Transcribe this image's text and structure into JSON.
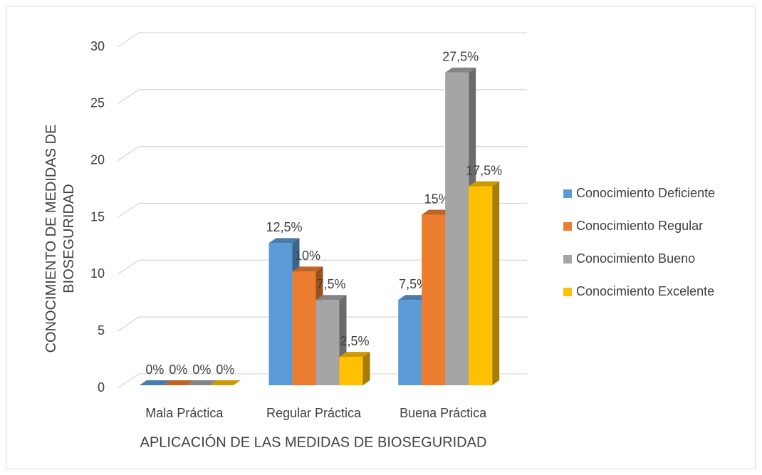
{
  "chart_data": {
    "type": "bar3d",
    "x_label": "APLICACIÓN DE LAS MEDIDAS DE BIOSEGURIDAD",
    "y_label": "CONOCIMIENTO DE MEDIDAS DE BIOSEGURIDAD",
    "categories": [
      "Mala Práctica",
      "Regular Práctica",
      "Buena Práctica"
    ],
    "series": [
      {
        "name": "Conocimiento Deficiente",
        "color": "#5b9bd5",
        "values": [
          0,
          12.5,
          7.5
        ],
        "value_labels": [
          "0%",
          "12,5%",
          "7,5%"
        ]
      },
      {
        "name": "Conocimiento Regular",
        "color": "#ed7d31",
        "values": [
          0,
          10,
          15
        ],
        "value_labels": [
          "0%",
          "10%",
          "15%"
        ]
      },
      {
        "name": "Conocimiento Bueno",
        "color": "#a5a5a5",
        "values": [
          0,
          7.5,
          27.5
        ],
        "value_labels": [
          "0%",
          "7,5%",
          "27,5%"
        ]
      },
      {
        "name": "Conocimiento Excelente",
        "color": "#ffc000",
        "values": [
          0,
          2.5,
          17.5
        ],
        "value_labels": [
          "0%",
          "2,5%",
          "17,5%"
        ]
      }
    ],
    "ylim": [
      0,
      30
    ],
    "yticks": [
      0,
      5,
      10,
      15,
      20,
      25,
      30
    ],
    "grid": true,
    "legend": "right"
  }
}
